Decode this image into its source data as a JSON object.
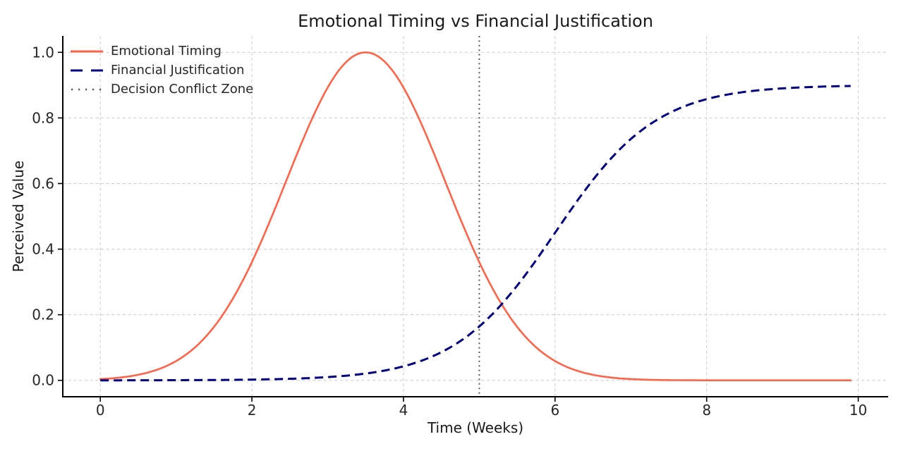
{
  "chart_data": {
    "type": "line",
    "title": "Emotional Timing vs Financial Justification",
    "xlabel": "Time (Weeks)",
    "ylabel": "Perceived Value",
    "xlim": [
      -0.495,
      10.395
    ],
    "ylim": [
      -0.05,
      1.05
    ],
    "x_ticks": [
      0,
      2,
      4,
      6,
      8,
      10
    ],
    "x_tick_labels": [
      "0",
      "2",
      "4",
      "6",
      "8",
      "10"
    ],
    "y_ticks": [
      0.0,
      0.2,
      0.4,
      0.6,
      0.8,
      1.0
    ],
    "y_tick_labels": [
      "0.0",
      "0.2",
      "0.4",
      "0.6",
      "0.8",
      "1.0"
    ],
    "grid": true,
    "legend_position": "upper left",
    "x_range": [
      0,
      9.9
    ],
    "series": [
      {
        "name": "Emotional Timing",
        "color": "#ff6347",
        "linestyle": "solid",
        "linewidth": 2.6,
        "model": {
          "type": "gaussian",
          "peak_x": 3.5,
          "sigma": 1.05,
          "amplitude": 1.0
        },
        "x": [
          0,
          0.5,
          1,
          1.5,
          2,
          2.5,
          3,
          3.5,
          4,
          4.5,
          5,
          5.5,
          6,
          6.5,
          7,
          7.5,
          8,
          8.5,
          9,
          9.5,
          9.9
        ],
        "y": [
          0.0039,
          0.0169,
          0.0587,
          0.163,
          0.36,
          0.635,
          0.893,
          1.0,
          0.893,
          0.635,
          0.36,
          0.163,
          0.0587,
          0.0169,
          0.0039,
          0.0007,
          0.0001,
          0.0,
          0.0,
          0.0,
          0.0
        ]
      },
      {
        "name": "Financial Justification",
        "color": "#000080",
        "linestyle": "dashed",
        "linewidth": 3,
        "model": {
          "type": "logistic",
          "midpoint": 6.0,
          "rate": 1.5,
          "max": 0.9
        },
        "x": [
          0,
          0.5,
          1,
          1.5,
          2,
          2.5,
          3,
          3.5,
          4,
          4.5,
          5,
          5.5,
          6,
          6.5,
          7,
          7.5,
          8,
          8.5,
          9,
          9.5,
          9.9
        ],
        "y": [
          0.0001,
          0.0002,
          0.0005,
          0.0011,
          0.0022,
          0.0047,
          0.0099,
          0.0207,
          0.0427,
          0.0858,
          0.1642,
          0.2888,
          0.45,
          0.6113,
          0.7358,
          0.8142,
          0.8573,
          0.8793,
          0.8901,
          0.8953,
          0.8974
        ]
      }
    ],
    "vline": {
      "name": "Decision Conflict Zone",
      "x": 5.0,
      "color": "#555555",
      "linestyle": "dotted",
      "linewidth": 2
    },
    "colors": {
      "grid": "#cccccc",
      "spine": "#000000",
      "tick_text": "#262626",
      "text": "#1a1a1a",
      "background": "#ffffff"
    }
  }
}
